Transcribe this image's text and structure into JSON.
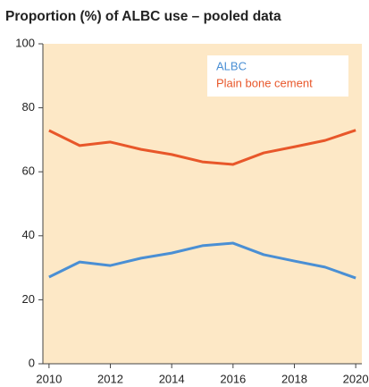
{
  "chart_data": {
    "type": "line",
    "title": "Proportion (%) of ALBC use – pooled data",
    "x": [
      2010,
      2011,
      2012,
      2013,
      2014,
      2015,
      2016,
      2017,
      2018,
      2019,
      2020
    ],
    "series": [
      {
        "name": "ALBC",
        "color": "#4a8fd4",
        "values": [
          27.1,
          31.8,
          30.7,
          33,
          34.6,
          36.9,
          37.7,
          34.1,
          32.1,
          30.2,
          26.8
        ]
      },
      {
        "name": "Plain bone cement",
        "color": "#e8572a",
        "values": [
          72.9,
          68.2,
          69.3,
          67,
          65.4,
          63.1,
          62.3,
          65.9,
          67.8,
          69.8,
          73
        ]
      }
    ],
    "xlim": [
      2009.8,
      2020.2
    ],
    "xticks": [
      2010,
      2012,
      2014,
      2016,
      2018,
      2020
    ],
    "ylim": [
      0,
      100
    ],
    "yticks": [
      0,
      20,
      40,
      60,
      80,
      100
    ],
    "grid": false,
    "legend": "upper right",
    "background": "#fde8c6"
  }
}
